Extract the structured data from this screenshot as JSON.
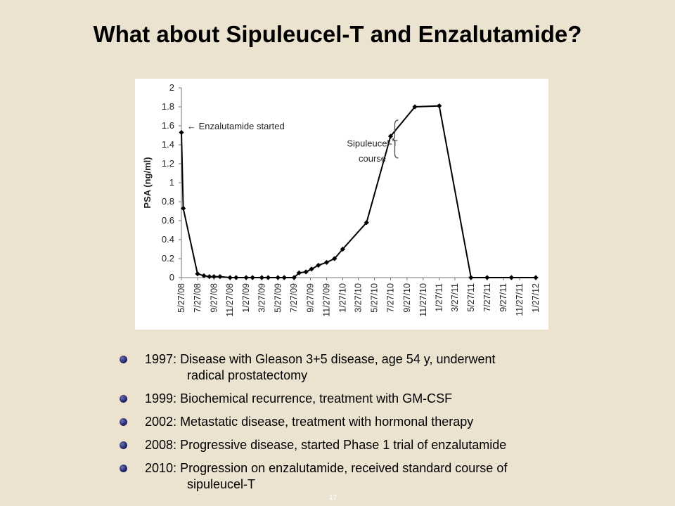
{
  "slide": {
    "title": "What about Sipuleucel-T and Enzalutamide?",
    "page_number": "17"
  },
  "chart_data": {
    "type": "line",
    "title": "",
    "xlabel": "",
    "ylabel": "PSA (ng/ml)",
    "ylim": [
      0,
      2
    ],
    "yticks": [
      "0",
      "0.2",
      "0.4",
      "0.6",
      "0.8",
      "1",
      "1.2",
      "1.4",
      "1.6",
      "1.8",
      "2"
    ],
    "xlim": [
      "2008-05-27",
      "2012-01-27"
    ],
    "xticks": [
      "5/27/08",
      "7/27/08",
      "9/27/08",
      "11/27/08",
      "1/27/09",
      "3/27/09",
      "5/27/09",
      "7/27/09",
      "9/27/09",
      "11/27/09",
      "1/27/10",
      "3/27/10",
      "5/27/10",
      "7/27/10",
      "9/27/10",
      "11/27/10",
      "1/27/11",
      "3/27/11",
      "5/27/11",
      "7/27/11",
      "9/27/11",
      "11/27/11",
      "1/27/12"
    ],
    "grid": false,
    "series": [
      {
        "color": "#000000",
        "x": [
          "2008-05-27",
          "2008-06-03",
          "2008-07-27",
          "2008-08-20",
          "2008-09-10",
          "2008-09-27",
          "2008-10-20",
          "2008-11-27",
          "2008-12-20",
          "2009-01-27",
          "2009-02-20",
          "2009-03-27",
          "2009-04-20",
          "2009-05-27",
          "2009-06-20",
          "2009-07-27",
          "2009-08-15",
          "2009-09-10",
          "2009-10-01",
          "2009-10-27",
          "2009-11-27",
          "2009-12-27",
          "2010-01-27",
          "2010-04-27",
          "2010-07-27",
          "2010-10-27",
          "2011-01-27",
          "2011-05-27",
          "2011-07-27",
          "2011-10-27",
          "2012-01-27"
        ],
        "y": [
          1.53,
          0.73,
          0.04,
          0.02,
          0.01,
          0.01,
          0.01,
          0.0,
          0.0,
          0.0,
          0.0,
          0.0,
          0.0,
          0.0,
          0.0,
          0.0,
          0.05,
          0.06,
          0.09,
          0.13,
          0.16,
          0.2,
          0.3,
          0.58,
          1.49,
          1.8,
          1.81,
          0.0,
          0.0,
          0.0,
          0.0
        ]
      }
    ],
    "annotations": [
      {
        "text": "← Enzalutamide started",
        "x": "2008-05-27",
        "y": 1.6
      },
      {
        "text": "Sipuleucel-T",
        "x": "2010-07-27",
        "y": 1.42
      },
      {
        "text": "course",
        "x": "2010-07-27",
        "y": 1.26
      }
    ]
  },
  "bullets": [
    {
      "year": "1997:",
      "text": "Disease with Gleason 3+5 disease, age 54 y, underwent",
      "cont": "radical prostatectomy"
    },
    {
      "year": "1999:",
      "text": "Biochemical recurrence, treatment with GM-CSF",
      "cont": ""
    },
    {
      "year": "2002:",
      "text": "Metastatic disease, treatment with hormonal therapy",
      "cont": ""
    },
    {
      "year": "2008:",
      "text": "Progressive disease, started Phase 1 trial of enzalutamide",
      "cont": ""
    },
    {
      "year": "2010:",
      "text": "Progression on enzalutamide, received standard course of",
      "cont": "sipuleucel-T"
    }
  ],
  "colors": {
    "background": "#ebe3cf",
    "bullet": "#23246b",
    "line": "#000000"
  }
}
